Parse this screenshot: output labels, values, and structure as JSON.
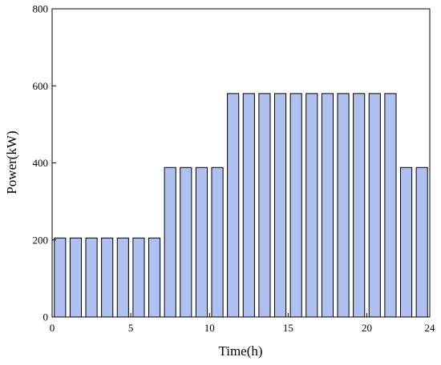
{
  "chart_data": {
    "type": "bar",
    "xlabel": "Time(h)",
    "ylabel": "Power(kW)",
    "xlim": [
      0,
      24
    ],
    "ylim": [
      0,
      800
    ],
    "x_ticks": [
      0,
      5,
      10,
      15,
      20,
      24
    ],
    "y_ticks": [
      0,
      200,
      400,
      600,
      800
    ],
    "grid": false,
    "bar_color": "#aec1f0",
    "bar_edge_color": "#000000",
    "series": [
      {
        "x": [
          0.5,
          1.5,
          2.5,
          3.5,
          4.5,
          5.5,
          6.5,
          7.5,
          8.5,
          9.5,
          10.5,
          11.5,
          12.5,
          13.5,
          14.5,
          15.5,
          16.5,
          17.5,
          18.5,
          19.5,
          20.5,
          21.5,
          22.5,
          23.5
        ],
        "values": [
          205,
          205,
          205,
          205,
          205,
          205,
          205,
          388,
          388,
          388,
          388,
          580,
          580,
          580,
          580,
          580,
          580,
          580,
          580,
          580,
          580,
          580,
          388,
          388
        ]
      }
    ]
  }
}
